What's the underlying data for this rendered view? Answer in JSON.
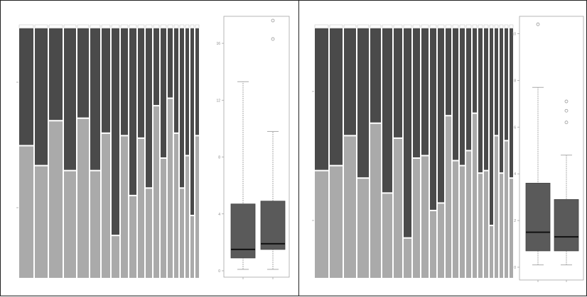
{
  "chart_data": [
    {
      "type": "bar",
      "stacked": true,
      "note": "left panel, proportional stacked bars (light = lower segment share)",
      "categories": [
        "",
        "",
        "",
        "",
        "",
        "",
        "",
        "",
        "",
        "",
        "",
        "",
        "",
        "",
        "",
        "",
        "",
        "",
        "",
        ""
      ],
      "series": [
        {
          "name": "",
          "color": "#aaaaaa",
          "values": [
            0.53,
            0.45,
            0.63,
            0.43,
            0.64,
            0.43,
            0.58,
            0.17,
            0.57,
            0.33,
            0.56,
            0.36,
            0.69,
            0.48,
            0.72,
            0.58,
            0.36,
            0.49,
            0.25,
            0.57
          ]
        },
        {
          "name": "",
          "color": "#4a4a4a",
          "values": [
            0.47,
            0.55,
            0.37,
            0.57,
            0.36,
            0.57,
            0.42,
            0.83,
            0.43,
            0.67,
            0.44,
            0.64,
            0.31,
            0.52,
            0.28,
            0.42,
            0.64,
            0.51,
            0.75,
            0.43
          ]
        }
      ],
      "ylim": [
        0,
        1
      ]
    },
    {
      "type": "box",
      "note": "left panel boxplots",
      "categories": [
        "",
        ""
      ],
      "boxes": [
        {
          "whisker_low": 0.1,
          "q1": 0.9,
          "median": 1.5,
          "q3": 4.7,
          "whisker_high": 13.3,
          "outliers": []
        },
        {
          "whisker_low": 0.1,
          "q1": 1.5,
          "median": 1.9,
          "q3": 4.9,
          "whisker_high": 9.8,
          "outliers": [
            16.3,
            17.6
          ]
        }
      ],
      "ylim": [
        0,
        17.5
      ],
      "yticks": [
        0,
        4,
        8,
        12,
        16
      ]
    },
    {
      "type": "bar",
      "stacked": true,
      "note": "right panel, proportional stacked bars",
      "categories": [
        "",
        "",
        "",
        "",
        "",
        "",
        "",
        "",
        "",
        "",
        "",
        "",
        "",
        "",
        "",
        "",
        "",
        "",
        "",
        "",
        "",
        "",
        "",
        ""
      ],
      "series": [
        {
          "name": "",
          "color": "#aaaaaa",
          "values": [
            0.43,
            0.45,
            0.57,
            0.4,
            0.62,
            0.34,
            0.56,
            0.16,
            0.48,
            0.49,
            0.27,
            0.3,
            0.65,
            0.47,
            0.45,
            0.51,
            0.66,
            0.42,
            0.43,
            0.21,
            0.57,
            0.42,
            0.55,
            0.4
          ]
        },
        {
          "name": "",
          "color": "#4a4a4a",
          "values": [
            0.57,
            0.55,
            0.43,
            0.6,
            0.38,
            0.66,
            0.44,
            0.84,
            0.52,
            0.51,
            0.73,
            0.7,
            0.35,
            0.53,
            0.55,
            0.49,
            0.34,
            0.58,
            0.57,
            0.79,
            0.43,
            0.58,
            0.45,
            0.6
          ]
        }
      ],
      "ylim": [
        0,
        1
      ]
    },
    {
      "type": "box",
      "note": "right panel boxplots",
      "categories": [
        "",
        ""
      ],
      "boxes": [
        {
          "whisker_low": 0.1,
          "q1": 0.7,
          "median": 1.5,
          "q3": 3.6,
          "whisker_high": 7.7,
          "outliers": [
            10.4
          ]
        },
        {
          "whisker_low": 0.1,
          "q1": 0.7,
          "median": 1.3,
          "q3": 2.9,
          "whisker_high": 4.8,
          "outliers": [
            6.2,
            6.7,
            7.1
          ]
        }
      ],
      "ylim": [
        0,
        10.5
      ],
      "yticks": [
        0,
        2,
        4,
        6,
        8,
        10
      ]
    }
  ]
}
